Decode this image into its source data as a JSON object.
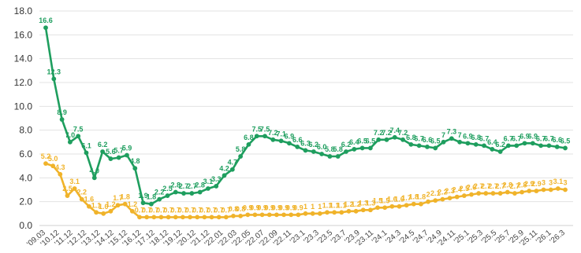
{
  "chart_data": {
    "type": "line",
    "ylim": [
      0,
      18
    ],
    "yticks": [
      "0.0",
      "2.0",
      "4.0",
      "6.0",
      "8.0",
      "10.0",
      "12.0",
      "14.0",
      "16.0",
      "18.0"
    ],
    "grid": true,
    "x_tick_labels": [
      "'09.03",
      "'10.12",
      "'11.12",
      "'12.12",
      "'13.12",
      "'14.12",
      "'15.12",
      "'16.12",
      "'17.12",
      "'18.12",
      "'19.12",
      "'20.12",
      "'21.12",
      "'22.01",
      "'22.03",
      "'22.05",
      "'22.07",
      "'22.09",
      "'22.11",
      "'23.1",
      "'23.3",
      "'23.5",
      "'23.7",
      "'23.9",
      "'23.11",
      "'24.1",
      "'24.3",
      "'24.5",
      "'24.7",
      "'24.9",
      "'24.11",
      "'25.1",
      "'25.3",
      "'25.5",
      "'25.7",
      "'25.9",
      "'25.11",
      "'26.1",
      "'26.3"
    ],
    "series": [
      {
        "color": "#1e9e5e",
        "values": [
          16.6,
          12.3,
          8.9,
          7.0,
          7.5,
          6.1,
          4.0,
          6.2,
          5.6,
          5.7,
          5.9,
          4.8,
          1.9,
          1.8,
          2.2,
          2.5,
          2.8,
          2.7,
          2.7,
          2.8,
          3.1,
          3.3,
          4.2,
          4.7,
          5.8,
          6.8,
          7.5,
          7.5,
          7.2,
          7.1,
          6.9,
          6.6,
          6.3,
          6.2,
          6.0,
          5.8,
          5.8,
          6.2,
          6.4,
          6.5,
          6.5,
          7.2,
          7.2,
          7.4,
          7.2,
          6.8,
          6.7,
          6.6,
          6.5,
          7.0,
          7.3,
          7.0,
          6.9,
          6.8,
          6.7,
          6.4,
          6.2,
          6.7,
          6.7,
          6.9,
          6.9,
          6.7,
          6.7,
          6.6,
          6.5
        ],
        "labels": [
          "16.6",
          "12.3",
          "8.9",
          "7.0",
          "7.5",
          "6.1",
          "4.0",
          "6.2",
          "5.6",
          "5.7",
          "5.9",
          "4.8",
          "1.9",
          "1.8",
          "2.2",
          "2.5",
          "2.8",
          "2.7",
          "2.7",
          "2.8",
          "3.1",
          "3.3",
          "4.2",
          "4.7",
          "5.8",
          "6.8",
          "7.5",
          "7.5",
          "7.2",
          "7.1",
          "6.9",
          "6.6",
          "6.3",
          "6.2",
          "6.0",
          "5.8",
          "5.8",
          "6.2",
          "6.4",
          "6.5",
          "6.5",
          "7.2",
          "7.2",
          "7.4",
          "7.2",
          "6.8",
          "6.7",
          "6.6",
          "6.5",
          "7",
          "7.3",
          "7",
          "6.9",
          "6.8",
          "6.7",
          "6.4",
          "6.2",
          "6.7",
          "6.7",
          "6.9",
          "6.9",
          "6.7",
          "6.7",
          "6.6",
          "6.5"
        ]
      },
      {
        "color": "#f0b32a",
        "values": [
          5.2,
          5.0,
          4.3,
          2.5,
          3.1,
          2.2,
          1.6,
          1.1,
          1.0,
          1.2,
          1.7,
          1.8,
          1.2,
          0.7,
          0.7,
          0.7,
          0.7,
          0.7,
          0.7,
          0.7,
          0.7,
          0.7,
          0.7,
          0.7,
          0.7,
          0.7,
          0.8,
          0.8,
          0.9,
          0.9,
          0.9,
          0.9,
          0.9,
          0.9,
          0.9,
          0.9,
          1,
          1,
          1,
          1.1,
          1.1,
          1.1,
          1.2,
          1.2,
          1.3,
          1.3,
          1.5,
          1.5,
          1.6,
          1.6,
          1.7,
          1.8,
          1.8,
          2,
          2.1,
          2.2,
          2.3,
          2.4,
          2.5,
          2.6,
          2.7,
          2.7,
          2.7,
          2.7,
          2.8,
          2.7,
          2.8,
          2.9,
          2.9,
          3,
          3,
          3.1,
          3
        ],
        "labels": [
          "5.2",
          "5.0",
          "4.3",
          "2.5",
          "3.1",
          "2.2",
          "1.6",
          "1.1",
          "1.0",
          "1.2",
          "1.7",
          "1.8",
          "1.2",
          "0.7",
          "0.7",
          "0.7",
          "0.7",
          "0.7",
          "0.7",
          "0.7",
          "0.7",
          "0.7",
          "0.7",
          "0.7",
          "0.7",
          "0.7",
          "0.8",
          "0.8",
          "0.9",
          "0.9",
          "0.9",
          "0.9",
          "0.9",
          "0.9",
          "0.9",
          "0.9",
          "1",
          "1",
          "1",
          "1.1",
          "1.1",
          "1.1",
          "1.2",
          "1.2",
          "1.3",
          "1.3",
          "1.5",
          "1.5",
          "1.6",
          "1.6",
          "1.7",
          "1.8",
          "1.8",
          "2",
          "2.1",
          "2.2",
          "2.3",
          "2.4",
          "2.5",
          "2.6",
          "2.7",
          "2.7",
          "2.7",
          "2.7",
          "2.8",
          "2.7",
          "2.8",
          "2.9",
          "2.9",
          "3",
          "3",
          "3.1",
          "3"
        ]
      }
    ]
  }
}
